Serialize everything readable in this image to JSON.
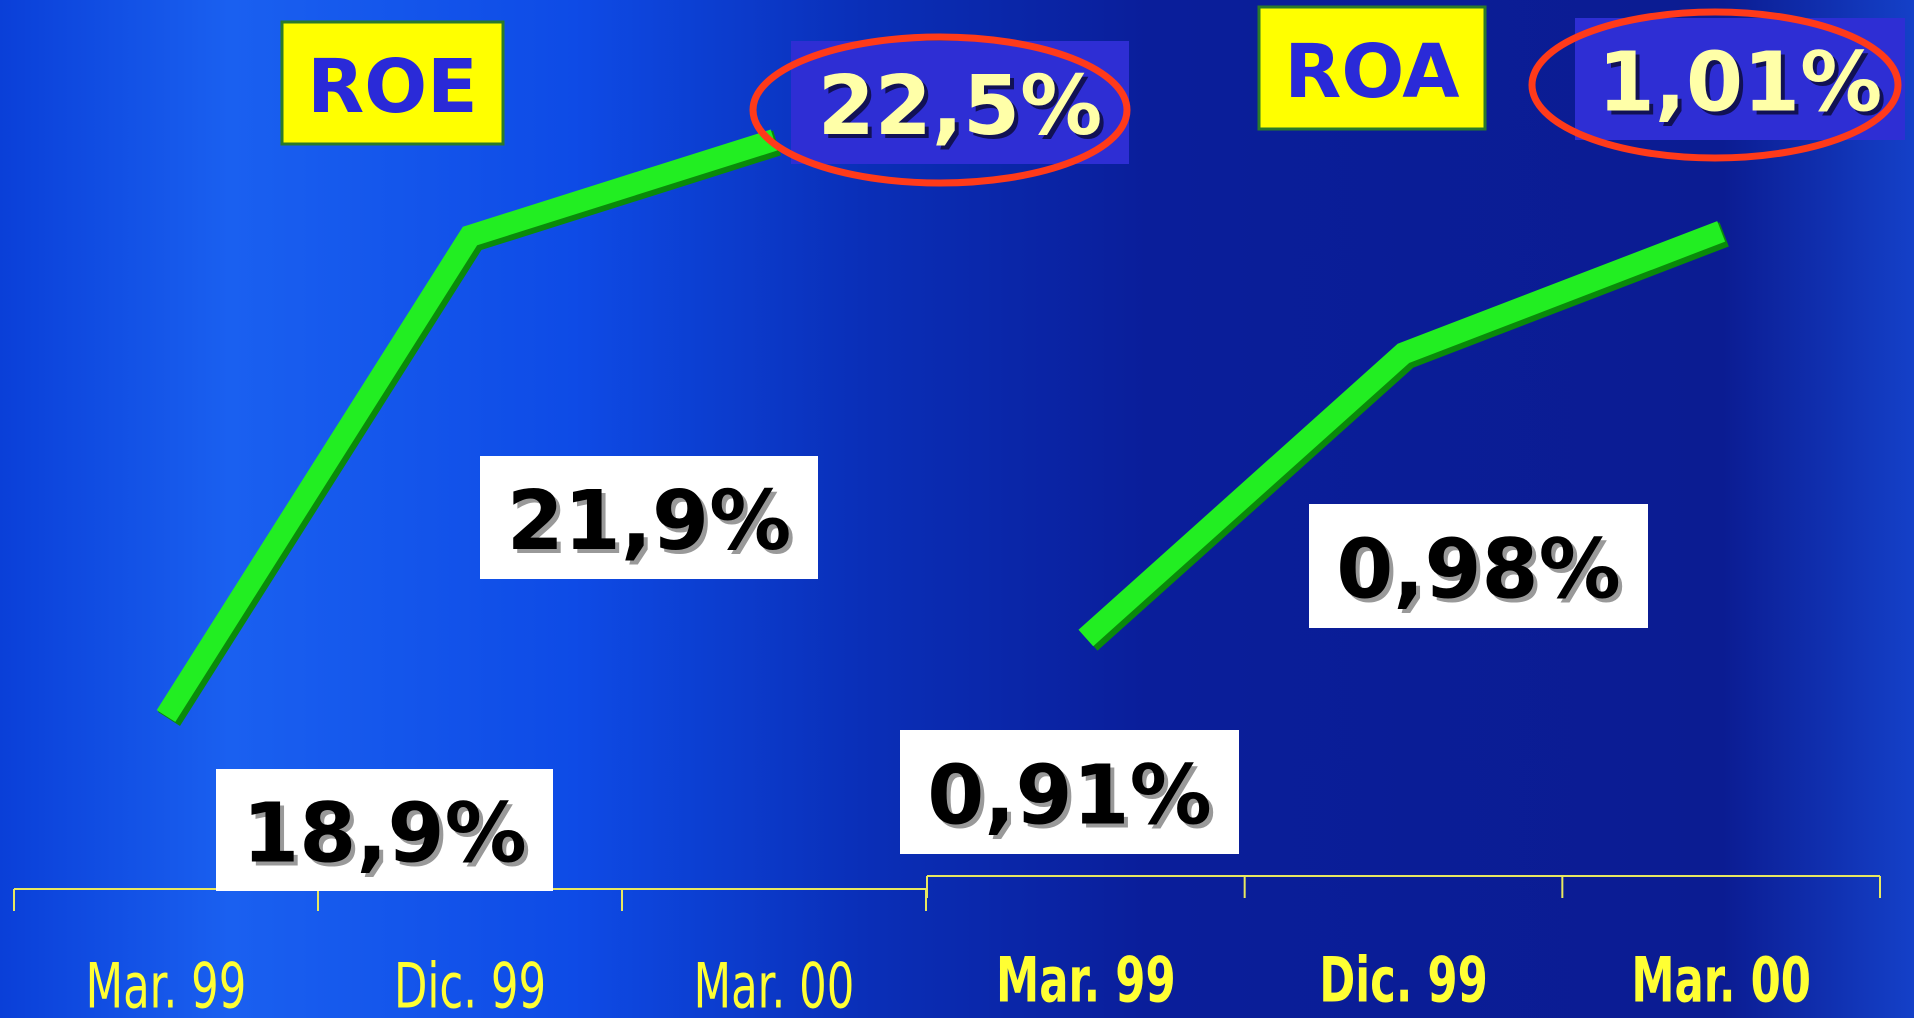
{
  "chart_data": [
    {
      "type": "line",
      "title": "ROE",
      "categories": [
        "Mar. 99",
        "Dic. 99",
        "Mar. 00"
      ],
      "values": [
        18.9,
        21.9,
        22.5
      ],
      "value_labels": [
        "18,9%",
        "21,9%",
        "22,5%"
      ],
      "color": "#22ee22",
      "ylim": [
        18,
        23
      ]
    },
    {
      "type": "line",
      "title": "ROA",
      "categories": [
        "Mar. 99",
        "Dic. 99",
        "Mar. 00"
      ],
      "values": [
        0.91,
        0.98,
        1.01
      ],
      "value_labels": [
        "0,91%",
        "0,98%",
        "1,01%"
      ],
      "color": "#22ee22",
      "ylim": [
        0.88,
        1.03
      ]
    }
  ]
}
